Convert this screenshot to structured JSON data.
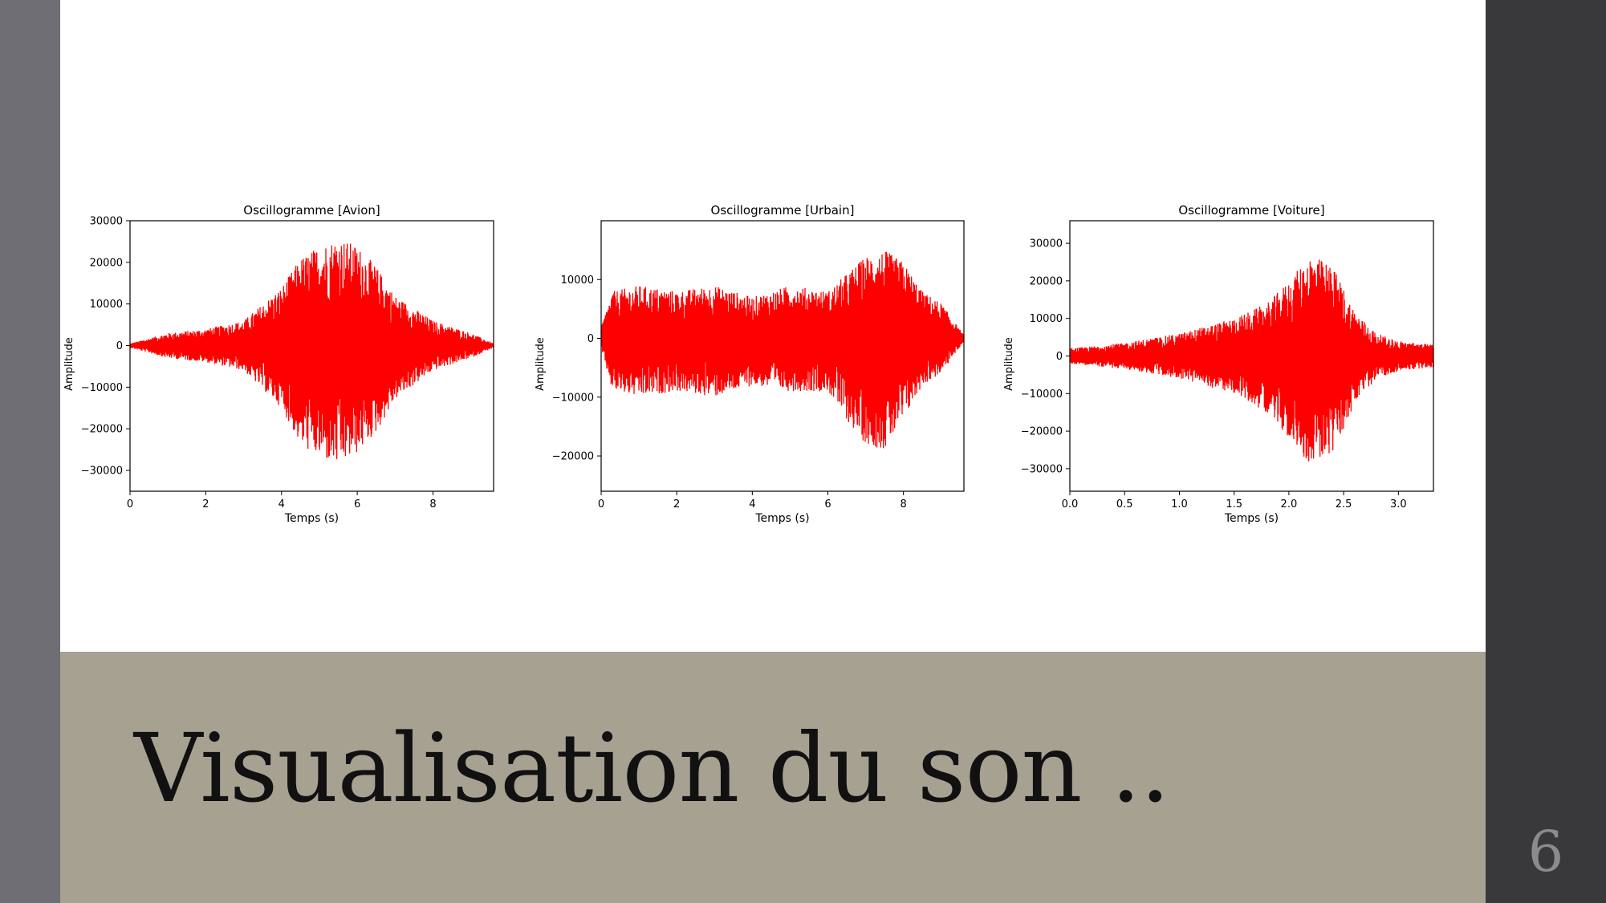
{
  "slide": {
    "title": "Visualisation du son ..",
    "page_number": "6",
    "colors": {
      "band": "#a6a191",
      "right_panel": "#39393b",
      "left_strip": "#6f6e74",
      "signal": "#ff0000"
    }
  },
  "chart_data": [
    {
      "type": "line",
      "title": "Oscillogramme [Avion]",
      "xlabel": "Temps (s)",
      "ylabel": "Amplitude",
      "xlim": [
        0,
        9.6
      ],
      "ylim": [
        -35000,
        30000
      ],
      "xticks": [
        0,
        2,
        4,
        6,
        8
      ],
      "xtick_labels": [
        "0",
        "2",
        "4",
        "6",
        "8"
      ],
      "yticks": [
        30000,
        20000,
        10000,
        0,
        -10000,
        -20000,
        -30000
      ],
      "ytick_labels": [
        "30000",
        "20000",
        "10000",
        "0",
        "−10000",
        "−20000",
        "−30000"
      ],
      "color": "#ff0000",
      "envelope": {
        "t": [
          0,
          1,
          2,
          3,
          4,
          4.5,
          5,
          5.5,
          6,
          6.5,
          7,
          8,
          9,
          9.6
        ],
        "upper": [
          500,
          3000,
          4000,
          6000,
          14000,
          21000,
          24000,
          26000,
          24000,
          19000,
          12000,
          6000,
          3000,
          500
        ],
        "lower": [
          -500,
          -3000,
          -4000,
          -6000,
          -15000,
          -24000,
          -27000,
          -29000,
          -26000,
          -21000,
          -13000,
          -6000,
          -3000,
          -500
        ]
      }
    },
    {
      "type": "line",
      "title": "Oscillogramme [Urbain]",
      "xlabel": "Temps (s)",
      "ylabel": "Amplitude",
      "xlim": [
        0,
        9.6
      ],
      "ylim": [
        -26000,
        20000
      ],
      "xticks": [
        0,
        2,
        4,
        6,
        8
      ],
      "xtick_labels": [
        "0",
        "2",
        "4",
        "6",
        "8"
      ],
      "yticks": [
        10000,
        0,
        -10000,
        -20000
      ],
      "ytick_labels": [
        "10000",
        "0",
        "−10000",
        "−20000"
      ],
      "color": "#ff0000",
      "envelope": {
        "t": [
          0,
          0.3,
          1,
          2,
          3,
          4,
          5,
          6,
          6.5,
          7,
          7.5,
          8,
          8.5,
          9,
          9.6
        ],
        "upper": [
          2000,
          8000,
          9000,
          8000,
          9000,
          7000,
          9000,
          8000,
          11000,
          14000,
          15000,
          13000,
          8000,
          6000,
          500
        ],
        "lower": [
          -2000,
          -9000,
          -10000,
          -9000,
          -10000,
          -8000,
          -9000,
          -9000,
          -14000,
          -18000,
          -19000,
          -14000,
          -8000,
          -6000,
          -500
        ]
      }
    },
    {
      "type": "line",
      "title": "Oscillogramme [Voiture]",
      "xlabel": "Temps (s)",
      "ylabel": "Amplitude",
      "xlim": [
        0,
        3.32
      ],
      "ylim": [
        -36000,
        36000
      ],
      "xticks": [
        0,
        0.5,
        1,
        1.5,
        2,
        2.5,
        3
      ],
      "xtick_labels": [
        "0.0",
        "0.5",
        "1.0",
        "1.5",
        "2.0",
        "2.5",
        "3.0"
      ],
      "yticks": [
        30000,
        20000,
        10000,
        0,
        -10000,
        -20000,
        -30000
      ],
      "ytick_labels": [
        "30000",
        "20000",
        "10000",
        "0",
        "−10000",
        "−20000",
        "−30000"
      ],
      "color": "#ff0000",
      "envelope": {
        "t": [
          0,
          0.5,
          1,
          1.5,
          1.8,
          2.0,
          2.2,
          2.4,
          2.6,
          2.8,
          3.0,
          3.32
        ],
        "upper": [
          2000,
          3500,
          6000,
          10000,
          14000,
          20000,
          27000,
          24000,
          12000,
          6000,
          4000,
          3000
        ],
        "lower": [
          -2000,
          -3500,
          -6000,
          -10000,
          -15000,
          -22000,
          -29000,
          -26000,
          -13000,
          -6000,
          -4000,
          -3000
        ]
      }
    }
  ]
}
